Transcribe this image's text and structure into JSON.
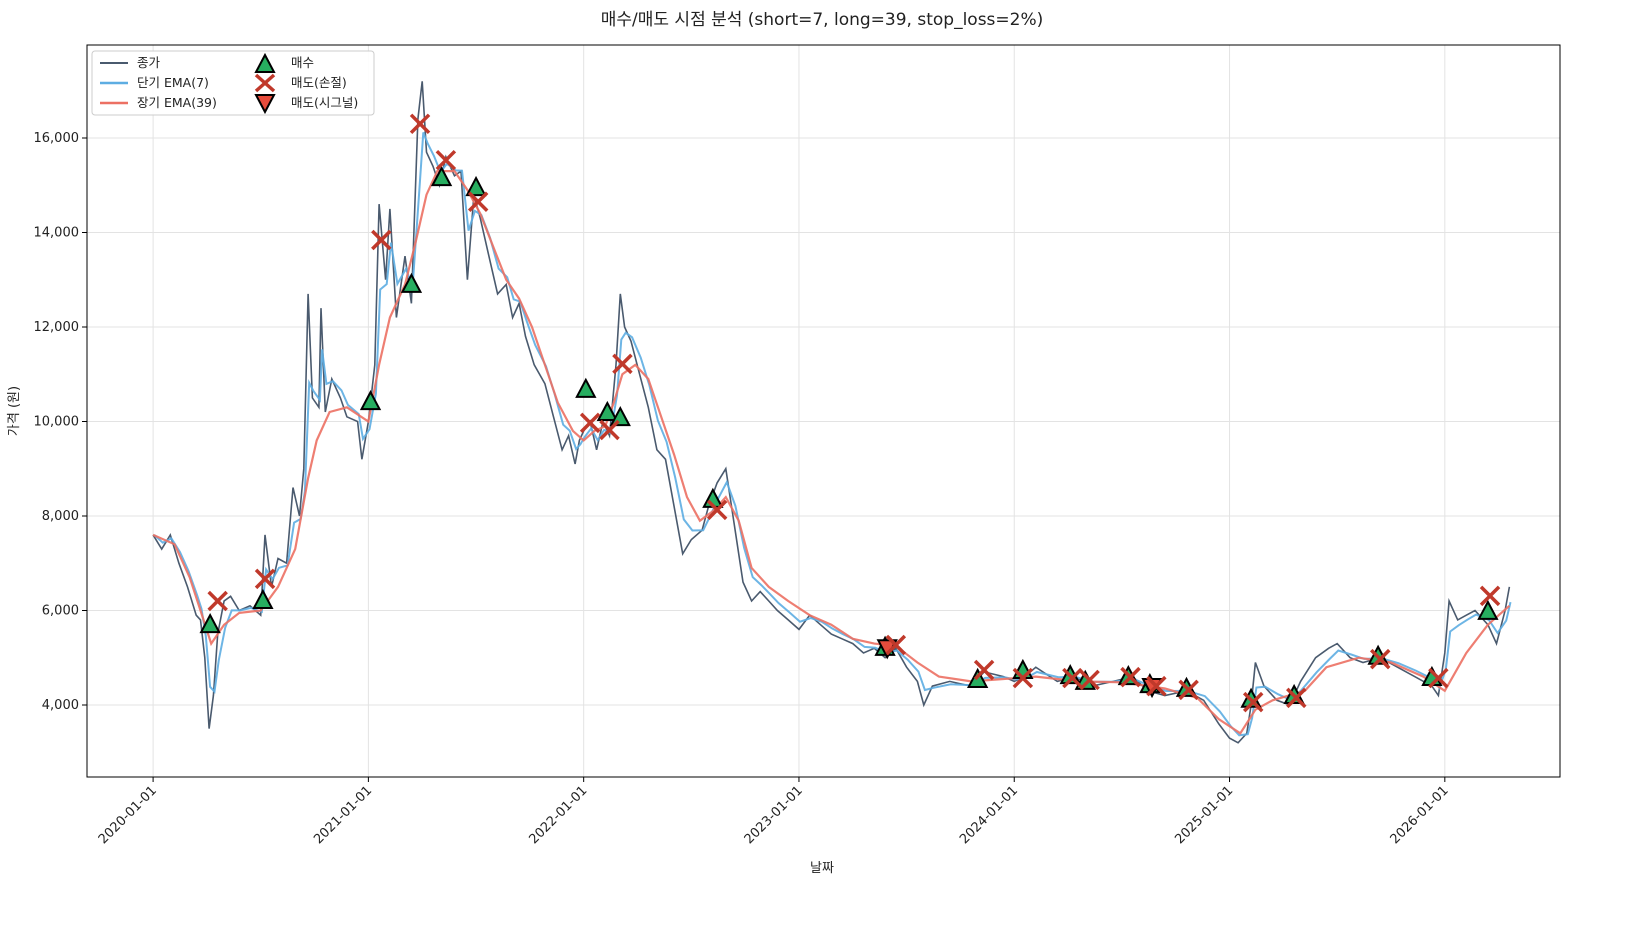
{
  "chart_data": {
    "type": "line",
    "title": "매수/매도 시점 분석 (short=7, long=39, stop_loss=2%)",
    "xlabel": "날짜",
    "ylabel": "가격 (원)",
    "xlim": [
      2019.693,
      2026.535
    ],
    "ylim": [
      2476,
      17968
    ],
    "grid": true,
    "legend_placement": "top-left",
    "x_ticks": [
      2020,
      2021,
      2022,
      2023,
      2024,
      2025,
      2026
    ],
    "x_tick_labels": [
      "2020-01-01",
      "2021-01-01",
      "2022-01-01",
      "2023-01-01",
      "2024-01-01",
      "2025-01-01",
      "2026-01-01"
    ],
    "y_ticks": [
      4000,
      6000,
      8000,
      10000,
      12000,
      14000,
      16000
    ],
    "y_tick_labels": [
      "4,000",
      "6,000",
      "8,000",
      "10,000",
      "12,000",
      "14,000",
      "16,000"
    ],
    "legend": [
      "종가",
      "단기 EMA(7)",
      "장기 EMA(39)",
      "매수",
      "매도(손절)",
      "매도(시그널)"
    ],
    "short_ema_window": 7,
    "colors": {
      "close": "#4a5a6e",
      "short_ema": "#5dade2",
      "long_ema": "#ec7063",
      "buy": "#27ae60",
      "sell_stop": "#c0392b",
      "sell_signal": "#e74c3c"
    },
    "close": [
      [
        2020.0,
        7600
      ],
      [
        2020.04,
        7300
      ],
      [
        2020.08,
        7600
      ],
      [
        2020.12,
        7000
      ],
      [
        2020.16,
        6500
      ],
      [
        2020.2,
        5900
      ],
      [
        2020.22,
        5800
      ],
      [
        2020.24,
        5000
      ],
      [
        2020.26,
        3500
      ],
      [
        2020.28,
        4200
      ],
      [
        2020.3,
        5500
      ],
      [
        2020.33,
        6200
      ],
      [
        2020.36,
        6300
      ],
      [
        2020.4,
        6000
      ],
      [
        2020.45,
        6100
      ],
      [
        2020.5,
        5900
      ],
      [
        2020.52,
        7600
      ],
      [
        2020.55,
        6500
      ],
      [
        2020.58,
        7100
      ],
      [
        2020.62,
        7000
      ],
      [
        2020.65,
        8600
      ],
      [
        2020.68,
        8000
      ],
      [
        2020.7,
        9000
      ],
      [
        2020.72,
        12700
      ],
      [
        2020.74,
        10500
      ],
      [
        2020.77,
        10300
      ],
      [
        2020.78,
        12400
      ],
      [
        2020.8,
        10200
      ],
      [
        2020.83,
        10900
      ],
      [
        2020.87,
        10500
      ],
      [
        2020.9,
        10100
      ],
      [
        2020.95,
        10000
      ],
      [
        2020.97,
        9200
      ],
      [
        2021.0,
        10000
      ],
      [
        2021.03,
        11200
      ],
      [
        2021.05,
        14600
      ],
      [
        2021.08,
        13000
      ],
      [
        2021.1,
        14500
      ],
      [
        2021.13,
        12200
      ],
      [
        2021.17,
        13500
      ],
      [
        2021.2,
        12500
      ],
      [
        2021.23,
        16400
      ],
      [
        2021.25,
        17200
      ],
      [
        2021.27,
        15700
      ],
      [
        2021.3,
        15400
      ],
      [
        2021.33,
        15000
      ],
      [
        2021.36,
        15600
      ],
      [
        2021.4,
        15200
      ],
      [
        2021.43,
        15300
      ],
      [
        2021.46,
        13000
      ],
      [
        2021.49,
        14800
      ],
      [
        2021.52,
        14300
      ],
      [
        2021.56,
        13500
      ],
      [
        2021.6,
        12700
      ],
      [
        2021.64,
        12900
      ],
      [
        2021.67,
        12200
      ],
      [
        2021.7,
        12500
      ],
      [
        2021.73,
        11800
      ],
      [
        2021.77,
        11200
      ],
      [
        2021.82,
        10800
      ],
      [
        2021.86,
        10100
      ],
      [
        2021.9,
        9400
      ],
      [
        2021.93,
        9700
      ],
      [
        2021.96,
        9100
      ],
      [
        2021.98,
        9600
      ],
      [
        2022.0,
        9800
      ],
      [
        2022.03,
        10000
      ],
      [
        2022.06,
        9400
      ],
      [
        2022.09,
        10000
      ],
      [
        2022.12,
        9700
      ],
      [
        2022.15,
        11200
      ],
      [
        2022.17,
        12700
      ],
      [
        2022.19,
        12000
      ],
      [
        2022.22,
        11700
      ],
      [
        2022.26,
        11000
      ],
      [
        2022.3,
        10300
      ],
      [
        2022.34,
        9400
      ],
      [
        2022.38,
        9200
      ],
      [
        2022.42,
        8200
      ],
      [
        2022.46,
        7200
      ],
      [
        2022.5,
        7500
      ],
      [
        2022.55,
        7700
      ],
      [
        2022.58,
        8200
      ],
      [
        2022.62,
        8700
      ],
      [
        2022.66,
        9000
      ],
      [
        2022.7,
        7800
      ],
      [
        2022.74,
        6600
      ],
      [
        2022.78,
        6200
      ],
      [
        2022.82,
        6400
      ],
      [
        2022.86,
        6200
      ],
      [
        2022.9,
        6000
      ],
      [
        2022.95,
        5800
      ],
      [
        2023.0,
        5600
      ],
      [
        2023.05,
        5900
      ],
      [
        2023.1,
        5700
      ],
      [
        2023.15,
        5500
      ],
      [
        2023.2,
        5400
      ],
      [
        2023.25,
        5300
      ],
      [
        2023.3,
        5100
      ],
      [
        2023.35,
        5200
      ],
      [
        2023.4,
        5000
      ],
      [
        2023.45,
        5200
      ],
      [
        2023.5,
        4800
      ],
      [
        2023.55,
        4500
      ],
      [
        2023.58,
        4000
      ],
      [
        2023.62,
        4400
      ],
      [
        2023.7,
        4500
      ],
      [
        2023.8,
        4400
      ],
      [
        2023.86,
        4700
      ],
      [
        2023.95,
        4600
      ],
      [
        2024.0,
        4500
      ],
      [
        2024.05,
        4600
      ],
      [
        2024.1,
        4800
      ],
      [
        2024.2,
        4500
      ],
      [
        2024.28,
        4600
      ],
      [
        2024.36,
        4400
      ],
      [
        2024.46,
        4500
      ],
      [
        2024.55,
        4600
      ],
      [
        2024.62,
        4300
      ],
      [
        2024.7,
        4200
      ],
      [
        2024.8,
        4300
      ],
      [
        2024.88,
        4100
      ],
      [
        2024.95,
        3600
      ],
      [
        2025.0,
        3300
      ],
      [
        2025.04,
        3200
      ],
      [
        2025.08,
        3400
      ],
      [
        2025.1,
        4000
      ],
      [
        2025.12,
        4900
      ],
      [
        2025.16,
        4400
      ],
      [
        2025.22,
        4100
      ],
      [
        2025.28,
        4000
      ],
      [
        2025.33,
        4500
      ],
      [
        2025.4,
        5000
      ],
      [
        2025.46,
        5200
      ],
      [
        2025.5,
        5300
      ],
      [
        2025.56,
        5000
      ],
      [
        2025.62,
        4900
      ],
      [
        2025.7,
        5000
      ],
      [
        2025.78,
        4800
      ],
      [
        2025.86,
        4600
      ],
      [
        2025.94,
        4400
      ],
      [
        2025.97,
        4200
      ],
      [
        2026.0,
        5100
      ],
      [
        2026.02,
        6200
      ],
      [
        2026.06,
        5800
      ],
      [
        2026.1,
        5900
      ],
      [
        2026.14,
        6000
      ],
      [
        2026.2,
        5700
      ],
      [
        2026.24,
        5300
      ],
      [
        2026.28,
        6000
      ],
      [
        2026.3,
        6500
      ]
    ],
    "long_ema": [
      [
        2020.0,
        7600
      ],
      [
        2020.1,
        7400
      ],
      [
        2020.17,
        6700
      ],
      [
        2020.22,
        6000
      ],
      [
        2020.27,
        5300
      ],
      [
        2020.33,
        5700
      ],
      [
        2020.4,
        5950
      ],
      [
        2020.5,
        6000
      ],
      [
        2020.58,
        6500
      ],
      [
        2020.66,
        7300
      ],
      [
        2020.72,
        8800
      ],
      [
        2020.76,
        9600
      ],
      [
        2020.82,
        10200
      ],
      [
        2020.9,
        10300
      ],
      [
        2021.0,
        10000
      ],
      [
        2021.05,
        11200
      ],
      [
        2021.1,
        12200
      ],
      [
        2021.17,
        12900
      ],
      [
        2021.22,
        13800
      ],
      [
        2021.27,
        14800
      ],
      [
        2021.32,
        15300
      ],
      [
        2021.4,
        15300
      ],
      [
        2021.46,
        14900
      ],
      [
        2021.52,
        14400
      ],
      [
        2021.58,
        13700
      ],
      [
        2021.64,
        13000
      ],
      [
        2021.7,
        12600
      ],
      [
        2021.76,
        12000
      ],
      [
        2021.82,
        11200
      ],
      [
        2021.88,
        10400
      ],
      [
        2021.95,
        9800
      ],
      [
        2022.0,
        9600
      ],
      [
        2022.05,
        9800
      ],
      [
        2022.1,
        9900
      ],
      [
        2022.14,
        10400
      ],
      [
        2022.18,
        11000
      ],
      [
        2022.24,
        11200
      ],
      [
        2022.3,
        10900
      ],
      [
        2022.36,
        10100
      ],
      [
        2022.42,
        9300
      ],
      [
        2022.48,
        8400
      ],
      [
        2022.54,
        7900
      ],
      [
        2022.6,
        8100
      ],
      [
        2022.66,
        8400
      ],
      [
        2022.72,
        7900
      ],
      [
        2022.78,
        6900
      ],
      [
        2022.86,
        6500
      ],
      [
        2022.95,
        6200
      ],
      [
        2023.05,
        5900
      ],
      [
        2023.15,
        5700
      ],
      [
        2023.25,
        5400
      ],
      [
        2023.35,
        5300
      ],
      [
        2023.45,
        5250
      ],
      [
        2023.55,
        4900
      ],
      [
        2023.65,
        4600
      ],
      [
        2023.8,
        4500
      ],
      [
        2023.95,
        4550
      ],
      [
        2024.1,
        4600
      ],
      [
        2024.3,
        4500
      ],
      [
        2024.5,
        4480
      ],
      [
        2024.7,
        4350
      ],
      [
        2024.85,
        4150
      ],
      [
        2024.95,
        3700
      ],
      [
        2025.05,
        3400
      ],
      [
        2025.12,
        3900
      ],
      [
        2025.2,
        4100
      ],
      [
        2025.35,
        4300
      ],
      [
        2025.45,
        4800
      ],
      [
        2025.6,
        5000
      ],
      [
        2025.75,
        4900
      ],
      [
        2025.9,
        4600
      ],
      [
        2026.0,
        4300
      ],
      [
        2026.1,
        5100
      ],
      [
        2026.2,
        5700
      ],
      [
        2026.3,
        6100
      ]
    ],
    "buy": [
      [
        2020.265,
        5690
      ],
      [
        2020.51,
        6200
      ],
      [
        2021.01,
        10410
      ],
      [
        2021.2,
        12890
      ],
      [
        2021.34,
        15150
      ],
      [
        2021.5,
        14940
      ],
      [
        2022.01,
        10670
      ],
      [
        2022.11,
        10180
      ],
      [
        2022.17,
        10070
      ],
      [
        2022.6,
        8340
      ],
      [
        2023.4,
        5210
      ],
      [
        2023.83,
        4530
      ],
      [
        2024.04,
        4720
      ],
      [
        2024.26,
        4610
      ],
      [
        2024.33,
        4490
      ],
      [
        2024.53,
        4590
      ],
      [
        2024.63,
        4420
      ],
      [
        2024.8,
        4340
      ],
      [
        2025.1,
        4110
      ],
      [
        2025.3,
        4190
      ],
      [
        2025.69,
        5020
      ],
      [
        2025.94,
        4570
      ],
      [
        2026.2,
        5970
      ]
    ],
    "sell_stop_loss": [
      [
        2020.3,
        6200
      ],
      [
        2020.52,
        6670
      ],
      [
        2021.06,
        13840
      ],
      [
        2021.24,
        16300
      ],
      [
        2021.36,
        15530
      ],
      [
        2021.51,
        14650
      ],
      [
        2022.03,
        9970
      ],
      [
        2022.12,
        9820
      ],
      [
        2022.18,
        11220
      ],
      [
        2022.62,
        8130
      ],
      [
        2023.45,
        5270
      ],
      [
        2023.86,
        4740
      ],
      [
        2024.04,
        4570
      ],
      [
        2024.27,
        4570
      ],
      [
        2024.35,
        4530
      ],
      [
        2024.54,
        4590
      ],
      [
        2024.66,
        4400
      ],
      [
        2024.81,
        4320
      ],
      [
        2025.11,
        4060
      ],
      [
        2025.31,
        4150
      ],
      [
        2025.7,
        4970
      ],
      [
        2025.97,
        4570
      ],
      [
        2026.21,
        6310
      ]
    ],
    "sell_signal": [
      [
        2023.41,
        5200
      ],
      [
        2024.64,
        4380
      ]
    ]
  }
}
